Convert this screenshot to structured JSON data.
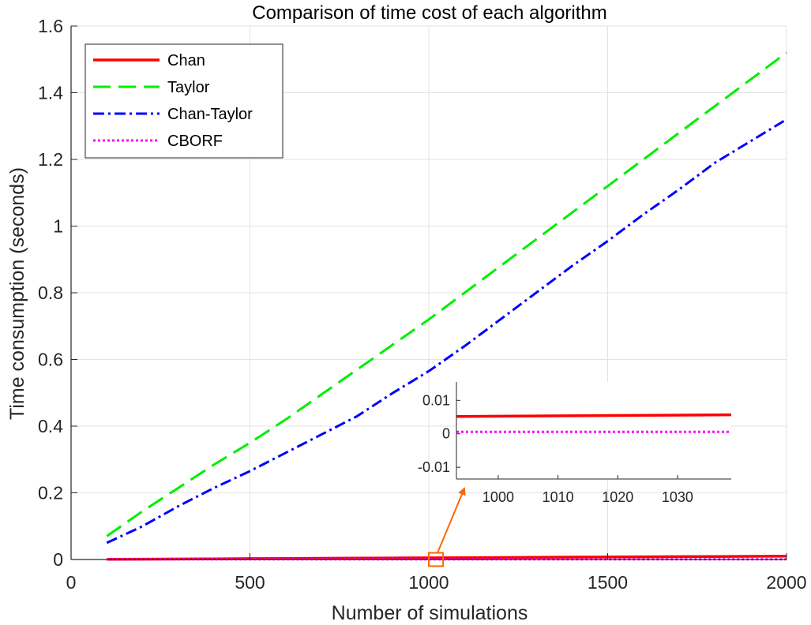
{
  "chart_data": [
    {
      "type": "line",
      "title": "Comparison of time cost of each algorithm",
      "xlabel": "Number of simulations",
      "ylabel": "Time consumption (seconds)",
      "xlim": [
        0,
        2000
      ],
      "ylim": [
        0,
        1.6
      ],
      "xticks": [
        0,
        500,
        1000,
        1500,
        2000
      ],
      "yticks": [
        0,
        0.2,
        0.4,
        0.6,
        0.8,
        1,
        1.2,
        1.4,
        1.6
      ],
      "xtick_labels": [
        "0",
        "500",
        "1000",
        "1500",
        "2000"
      ],
      "ytick_labels": [
        "0",
        "0.2",
        "0.4",
        "0.6",
        "0.8",
        "1",
        "1.2",
        "1.4",
        "1.6"
      ],
      "grid": true,
      "legend_position": "top-left",
      "x": [
        100,
        200,
        300,
        400,
        500,
        600,
        700,
        800,
        900,
        1000,
        1100,
        1200,
        1300,
        1400,
        1500,
        1600,
        1700,
        1800,
        1900,
        2000
      ],
      "series": [
        {
          "name": "Chan",
          "color": "#ff0000",
          "style": "solid",
          "values": [
            0.0005,
            0.001,
            0.0015,
            0.002,
            0.0025,
            0.003,
            0.0035,
            0.004,
            0.0045,
            0.005,
            0.0055,
            0.006,
            0.0065,
            0.007,
            0.0075,
            0.008,
            0.0085,
            0.009,
            0.0095,
            0.01
          ]
        },
        {
          "name": "Taylor",
          "color": "#00ee00",
          "style": "dashed",
          "values": [
            0.07,
            0.145,
            0.215,
            0.285,
            0.35,
            0.42,
            0.495,
            0.57,
            0.645,
            0.72,
            0.8,
            0.88,
            0.96,
            1.04,
            1.12,
            1.2,
            1.28,
            1.36,
            1.44,
            1.52
          ]
        },
        {
          "name": "Chan-Taylor",
          "color": "#0000ff",
          "style": "dashdot",
          "values": [
            0.05,
            0.1,
            0.16,
            0.215,
            0.265,
            0.32,
            0.375,
            0.43,
            0.5,
            0.565,
            0.64,
            0.72,
            0.8,
            0.88,
            0.955,
            1.035,
            1.11,
            1.19,
            1.255,
            1.32
          ]
        },
        {
          "name": "CBORF",
          "color": "#ff00ff",
          "style": "dotted",
          "values": [
            0.0005,
            0.0005,
            0.0005,
            0.0005,
            0.0005,
            0.0005,
            0.0005,
            0.0005,
            0.0005,
            0.0005,
            0.0005,
            0.0005,
            0.0005,
            0.0005,
            0.0005,
            0.0005,
            0.0005,
            0.0005,
            0.0005,
            0.0005
          ]
        }
      ],
      "highlight_region": {
        "x": [
          1000,
          1040
        ],
        "y": [
          -0.02,
          0.02
        ],
        "color": "#ff6600"
      }
    },
    {
      "type": "line",
      "role": "inset",
      "xlim": [
        993,
        1039
      ],
      "ylim": [
        -0.0135,
        0.0155
      ],
      "xticks": [
        1000,
        1010,
        1020,
        1030
      ],
      "yticks": [
        0.01,
        0,
        -0.01
      ],
      "xtick_labels": [
        "1000",
        "1010",
        "1020",
        "1030"
      ],
      "ytick_labels": [
        "0.01",
        "0",
        "-0.01"
      ],
      "x": [
        993,
        1039
      ],
      "series": [
        {
          "name": "Chan",
          "color": "#ff0000",
          "style": "solid",
          "values": [
            0.0052,
            0.0057
          ]
        },
        {
          "name": "CBORF",
          "color": "#ff00ff",
          "style": "dotted",
          "values": [
            0.0006,
            0.0006
          ]
        }
      ]
    }
  ]
}
